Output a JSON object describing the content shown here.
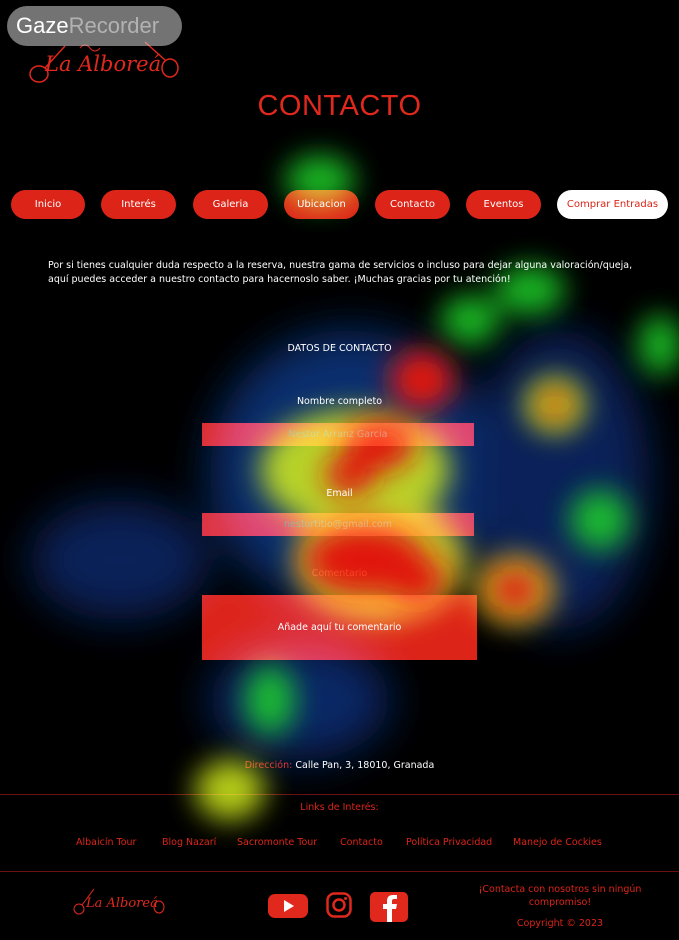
{
  "watermark": {
    "part1": "Gaze",
    "part2": "Recorder"
  },
  "logo": {
    "text": "La Alboreá"
  },
  "page_title": "CONTACTO",
  "nav": {
    "items": [
      {
        "label": "Inicio"
      },
      {
        "label": "Interés"
      },
      {
        "label": "Galeria"
      },
      {
        "label": "Ubicacion"
      },
      {
        "label": "Contacto"
      },
      {
        "label": "Eventos"
      },
      {
        "label": "Comprar Entradas"
      }
    ]
  },
  "intro": "Por si tienes cualquier duda respecto a la reserva, nuestra gama de servicios o incluso para dejar alguna valoración/queja, aquí puedes acceder a nuestro contacto para hacernoslo saber. ¡Muchas gracias por tu atención!",
  "form": {
    "section_title": "DATOS DE CONTACTO",
    "name_label": "Nombre completo",
    "name_placeholder": "Nestor Arranz Garcia",
    "email_label": "Email",
    "email_placeholder": "nestortitio@gmail.com",
    "comment_label": "Comentario",
    "comment_placeholder": "Añade aquí tu comentario"
  },
  "address": {
    "label": "Dirección:",
    "value": "Calle Pan, 3, 18010, Granada"
  },
  "links": {
    "title": "Links de Interés:",
    "items": [
      {
        "label": "Albaicín Tour"
      },
      {
        "label": "Blog Nazarí"
      },
      {
        "label": "Sacromonte Tour"
      },
      {
        "label": "Contacto"
      },
      {
        "label": "Política Privacidad"
      },
      {
        "label": "Manejo de Cockies"
      }
    ]
  },
  "footer": {
    "logo_text": "La Alboreá",
    "contact_text": "¡Contacta con nosotros sin ningún compromiso!",
    "copyright": "Copyright © 2023",
    "social": [
      "youtube-icon",
      "instagram-icon",
      "facebook-icon"
    ]
  },
  "colors": {
    "accent": "#dc2418",
    "background": "#000000"
  }
}
